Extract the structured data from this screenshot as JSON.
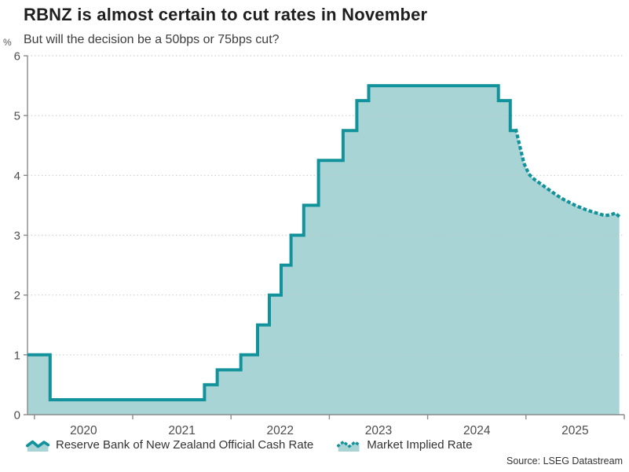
{
  "header": {
    "title": "RBNZ is almost certain to cut rates in November",
    "subtitle": "But will the decision be a 50bps or 75bps cut?"
  },
  "colors": {
    "line": "#12939c",
    "fill": "#a8d4d6",
    "axis": "#8a8a8a",
    "grid": "#c4c4c4",
    "tick_text": "#4d4d4d"
  },
  "chart_data": {
    "type": "area",
    "unit_label": "%",
    "ylim": [
      0,
      6
    ],
    "yticks": [
      0,
      1,
      2,
      3,
      4,
      5,
      6
    ],
    "xlim": [
      2019.93,
      2026.0
    ],
    "xticks": [
      2020,
      2021,
      2022,
      2023,
      2024,
      2025,
      2026
    ],
    "xtick_labels": [
      "2020",
      "2021",
      "2022",
      "2023",
      "2024",
      "2025"
    ],
    "grid": "dotted",
    "legend_position": "bottom",
    "series": [
      {
        "name": "Reserve Bank of New Zealand Official Cash Rate",
        "style": "solid-step",
        "points": [
          [
            2019.93,
            1.0
          ],
          [
            2020.16,
            0.25
          ],
          [
            2021.73,
            0.5
          ],
          [
            2021.86,
            0.75
          ],
          [
            2022.1,
            1.0
          ],
          [
            2022.27,
            1.5
          ],
          [
            2022.39,
            2.0
          ],
          [
            2022.51,
            2.5
          ],
          [
            2022.61,
            3.0
          ],
          [
            2022.74,
            3.5
          ],
          [
            2022.89,
            4.25
          ],
          [
            2023.14,
            4.75
          ],
          [
            2023.28,
            5.25
          ],
          [
            2023.4,
            5.5
          ],
          [
            2024.72,
            5.25
          ],
          [
            2024.84,
            4.75
          ]
        ],
        "end_t": 2024.9
      },
      {
        "name": "Market Implied Rate",
        "style": "dotted",
        "points": [
          [
            2024.9,
            4.75
          ],
          [
            2024.94,
            4.47
          ],
          [
            2024.98,
            4.2
          ],
          [
            2025.03,
            4.02
          ],
          [
            2025.08,
            3.94
          ],
          [
            2025.14,
            3.87
          ],
          [
            2025.2,
            3.8
          ],
          [
            2025.26,
            3.73
          ],
          [
            2025.32,
            3.66
          ],
          [
            2025.38,
            3.6
          ],
          [
            2025.44,
            3.55
          ],
          [
            2025.5,
            3.5
          ],
          [
            2025.56,
            3.46
          ],
          [
            2025.62,
            3.42
          ],
          [
            2025.68,
            3.39
          ],
          [
            2025.74,
            3.36
          ],
          [
            2025.8,
            3.33
          ],
          [
            2025.86,
            3.34
          ],
          [
            2025.91,
            3.37
          ],
          [
            2025.95,
            3.31
          ]
        ]
      }
    ]
  },
  "legend": [
    {
      "label": "Reserve Bank of New Zealand Official Cash Rate"
    },
    {
      "label": "Market Implied Rate"
    }
  ],
  "footer": {
    "source": "Source: LSEG Datastream"
  }
}
